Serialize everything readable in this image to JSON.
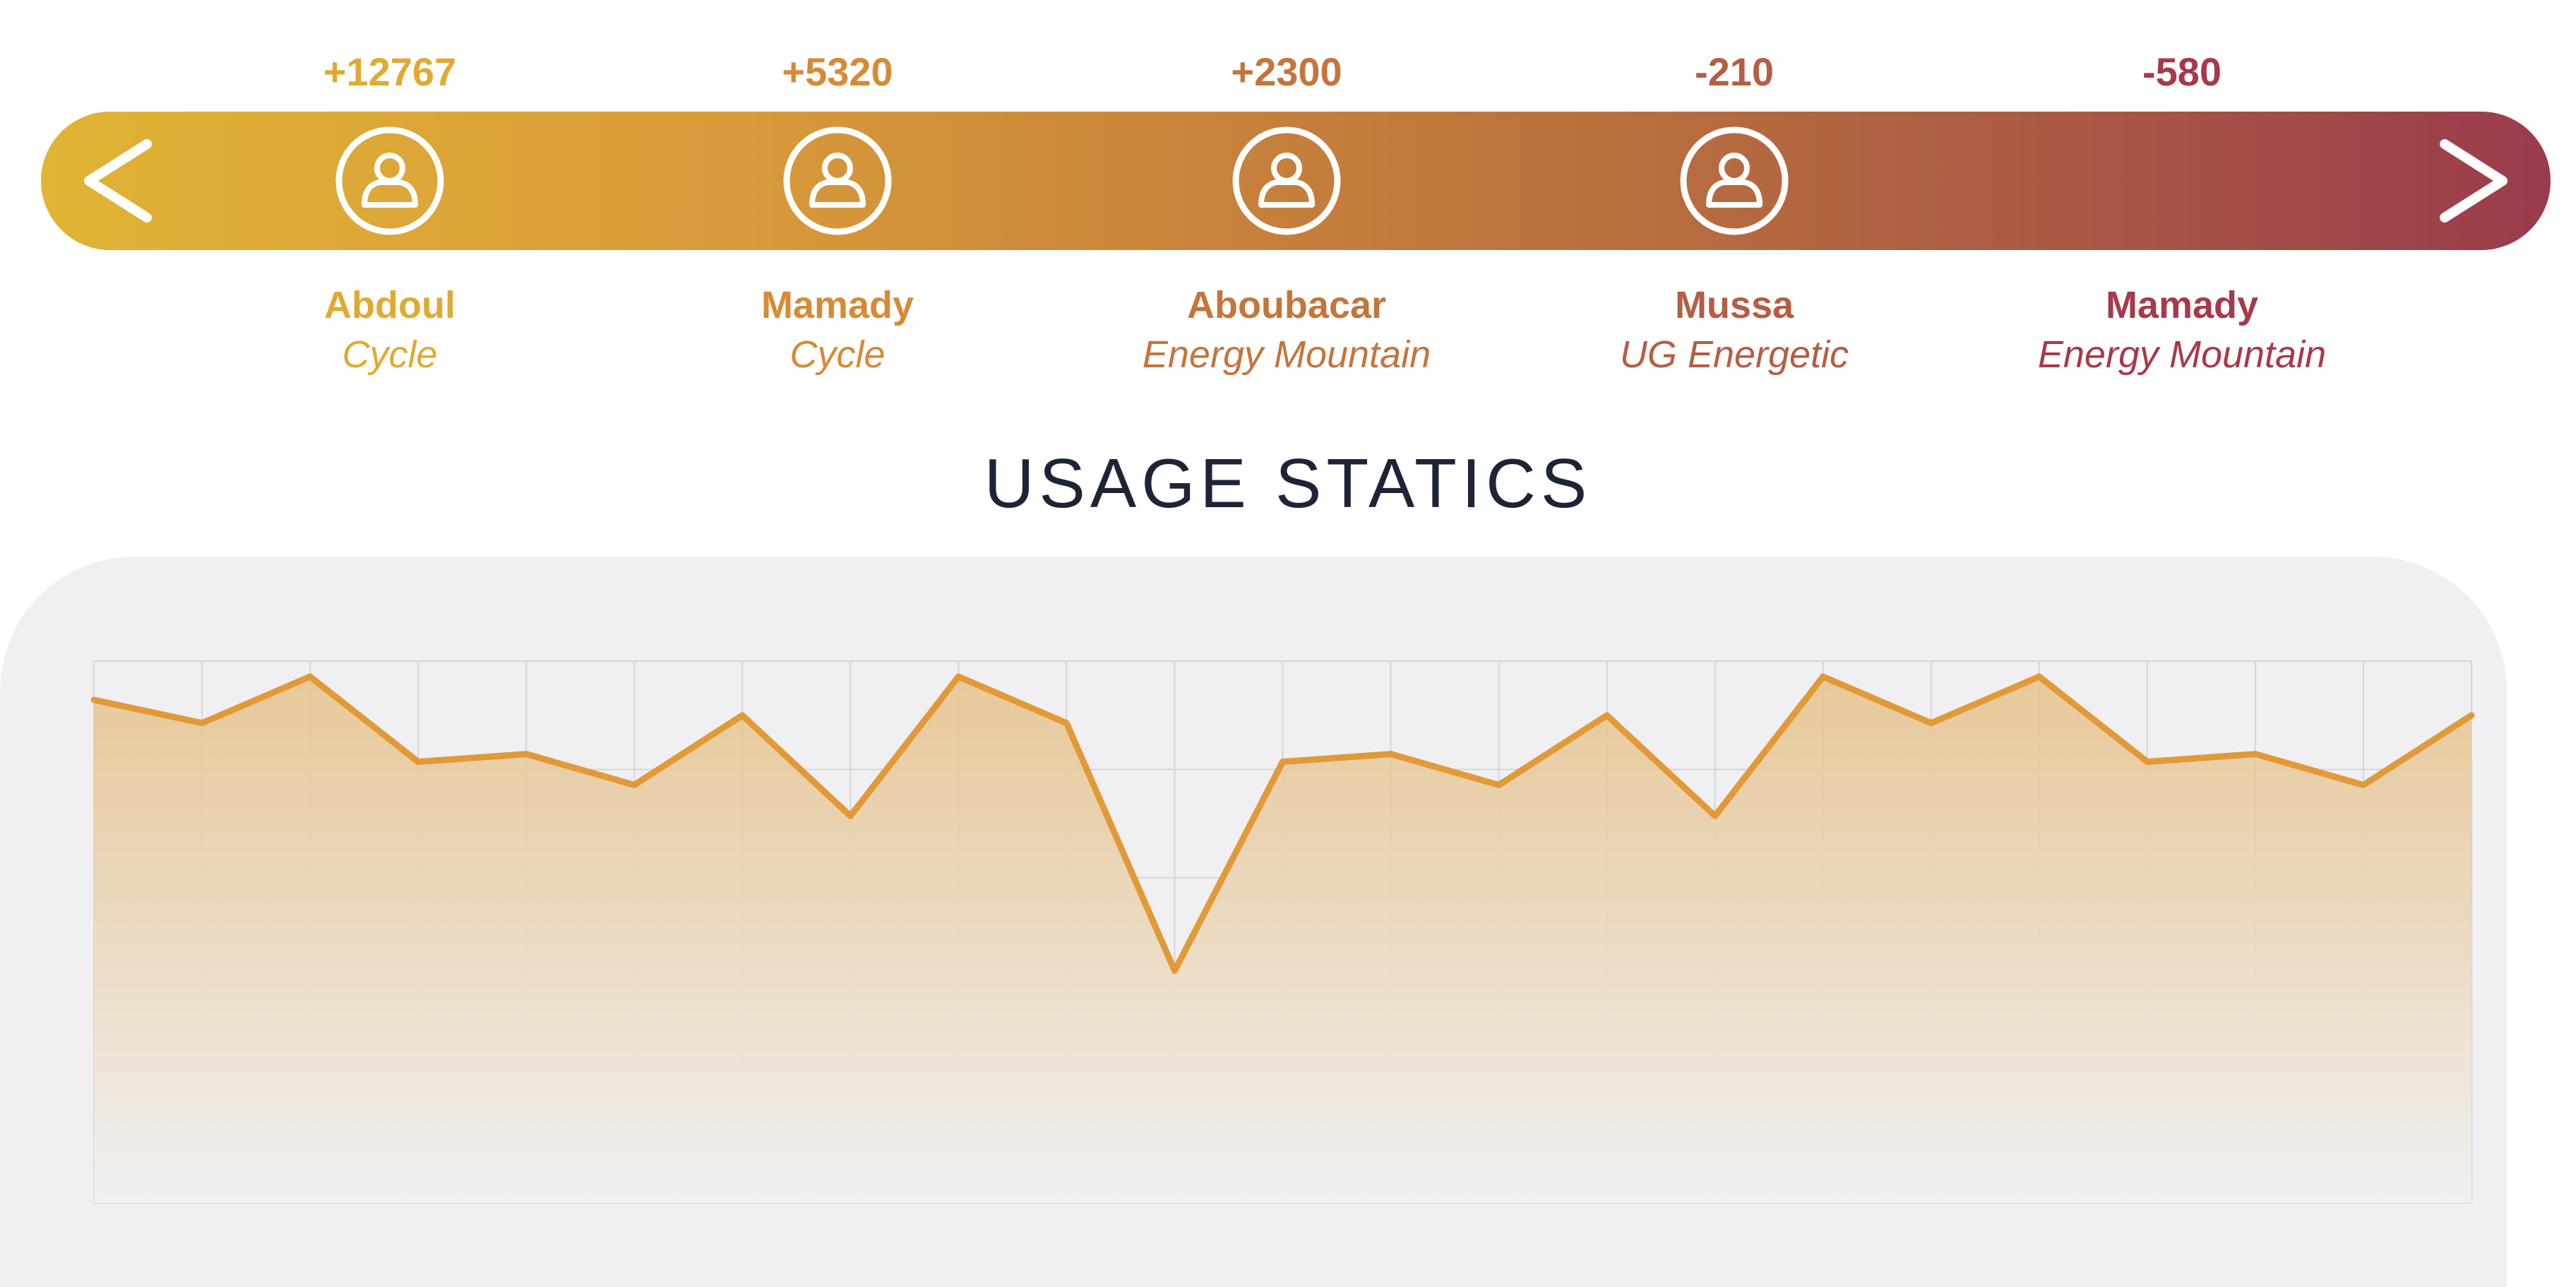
{
  "colors": {
    "gold": "#e0aa32",
    "orange": "#d78a36",
    "copper": "#c4753b",
    "rust": "#b45e44",
    "maroon": "#a7394c",
    "heading": "#1d2437",
    "line": "#e19a37",
    "card": "#f0f0f2"
  },
  "navigation": {
    "prev_icon": "chevron-left-icon",
    "next_icon": "chevron-right-icon"
  },
  "leaderboard": [
    {
      "value": "+12767",
      "name": "Abdoul",
      "product": "Cycle",
      "avatar_icon": "user-icon",
      "color": "#e0aa32"
    },
    {
      "value": "+5320",
      "name": "Mamady",
      "product": "Cycle",
      "avatar_icon": "user-icon",
      "color": "#d78a36"
    },
    {
      "value": "+2300",
      "name": "Aboubacar",
      "product": "Energy Mountain",
      "avatar_icon": "user-icon",
      "color": "#c4753b"
    },
    {
      "value": "-210",
      "name": "Mussa",
      "product": "UG Energetic",
      "avatar_icon": "user-icon",
      "color": "#b45e44"
    },
    {
      "value": "-580",
      "name": "Mamady",
      "product": "Energy Mountain",
      "avatar_icon": "user-icon",
      "color": "#a7394c"
    }
  ],
  "section": {
    "title": "USAGE STATICS"
  },
  "chart_data": {
    "type": "area",
    "title": "",
    "xlabel": "",
    "ylabel": "",
    "grid": true,
    "x": [
      0,
      1,
      2,
      3,
      4,
      5,
      6,
      7,
      8,
      9,
      10,
      11,
      12,
      13,
      14,
      15,
      16,
      17,
      18,
      19,
      20,
      21,
      22
    ],
    "values": [
      4.5,
      4.2,
      4.8,
      3.7,
      3.8,
      3.4,
      4.3,
      3.0,
      4.8,
      4.2,
      1.0,
      3.7,
      3.8,
      3.4,
      4.3,
      3.0,
      4.8,
      4.2,
      4.8,
      3.7,
      3.8,
      3.4,
      4.3
    ],
    "ylim": [
      -2,
      5
    ]
  }
}
